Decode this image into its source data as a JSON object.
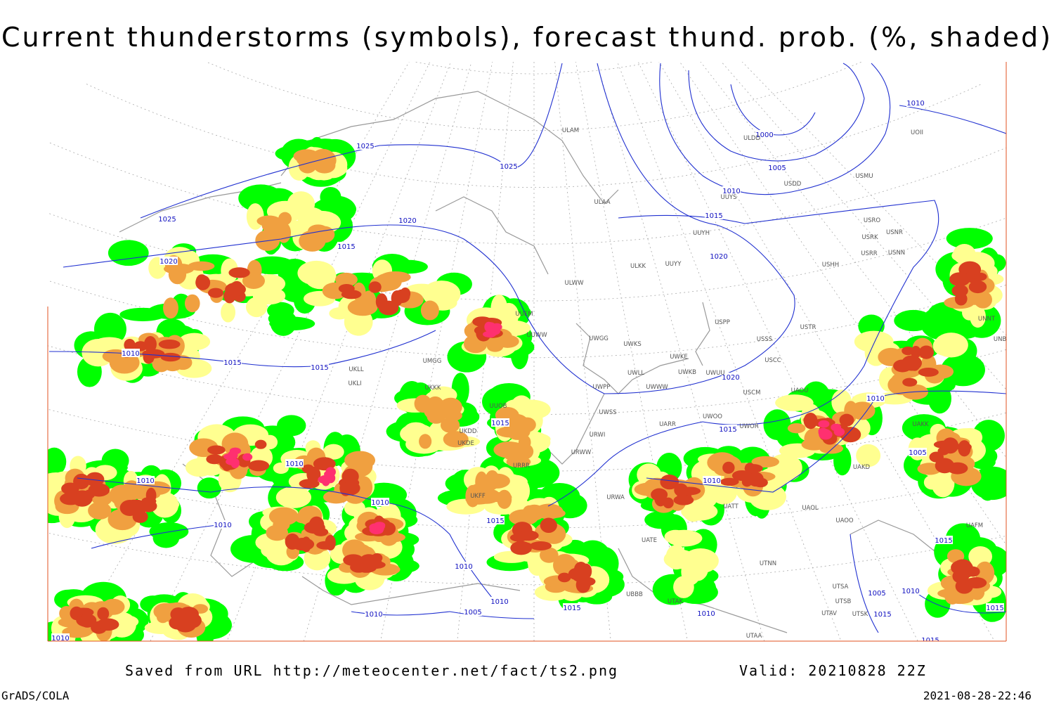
{
  "title": "Current thunderstorms (symbols), forecast thund. prob. (%, shaded)",
  "footer": {
    "source": "Saved from URL http://meteocenter.net/fact/ts2.png",
    "valid": "Valid: 20210828 22Z",
    "software": "GrADS/COLA",
    "timestamp": "2021-08-28-22:46"
  },
  "isobar_labels": [
    "1025",
    "1025",
    "1025",
    "1020",
    "1015",
    "1020",
    "1010",
    "1015",
    "1015",
    "1010",
    "1000",
    "1005",
    "1010",
    "1015",
    "1020",
    "1020",
    "1010",
    "1015",
    "1015",
    "1010",
    "1010",
    "1010",
    "1005",
    "1010",
    "1010",
    "1015",
    "1010",
    "1010",
    "1010",
    "1005",
    "1015",
    "1010",
    "1005",
    "1015",
    "1015",
    "1015",
    "1010",
    "1010",
    "1015"
  ],
  "stations": [
    "ULAM",
    "ULDD",
    "UOII",
    "USMU",
    "USDD",
    "UUYS",
    "ULAA",
    "USRO",
    "USRK",
    "USNR",
    "UUYH",
    "USRR",
    "USNN",
    "ULKK",
    "UUYY",
    "USHH",
    "ULWW",
    "UUEM",
    "UUWW",
    "UWGG",
    "UWKS",
    "USPP",
    "USTR",
    "USSS",
    "UNNT",
    "UNBB",
    "UWKE",
    "USCC",
    "UWLL",
    "UWWW",
    "UWKB",
    "UWUU",
    "UWPP",
    "USCM",
    "UAOU",
    "UMGG",
    "UKLL",
    "UKLI",
    "UKKK",
    "UUOB",
    "UWSS",
    "UWOO",
    "UAKK",
    "UARR",
    "UWOR",
    "UKDD",
    "UKDE",
    "URWI",
    "URWW",
    "URRR",
    "UAKD",
    "URWA",
    "UATT",
    "UAOL",
    "UAOO",
    "UKFF",
    "UATE",
    "UTNN",
    "UBBB",
    "UTAK",
    "UTSA",
    "UTSB",
    "UTAV",
    "UTSK",
    "UTAA",
    "UAFM"
  ]
}
